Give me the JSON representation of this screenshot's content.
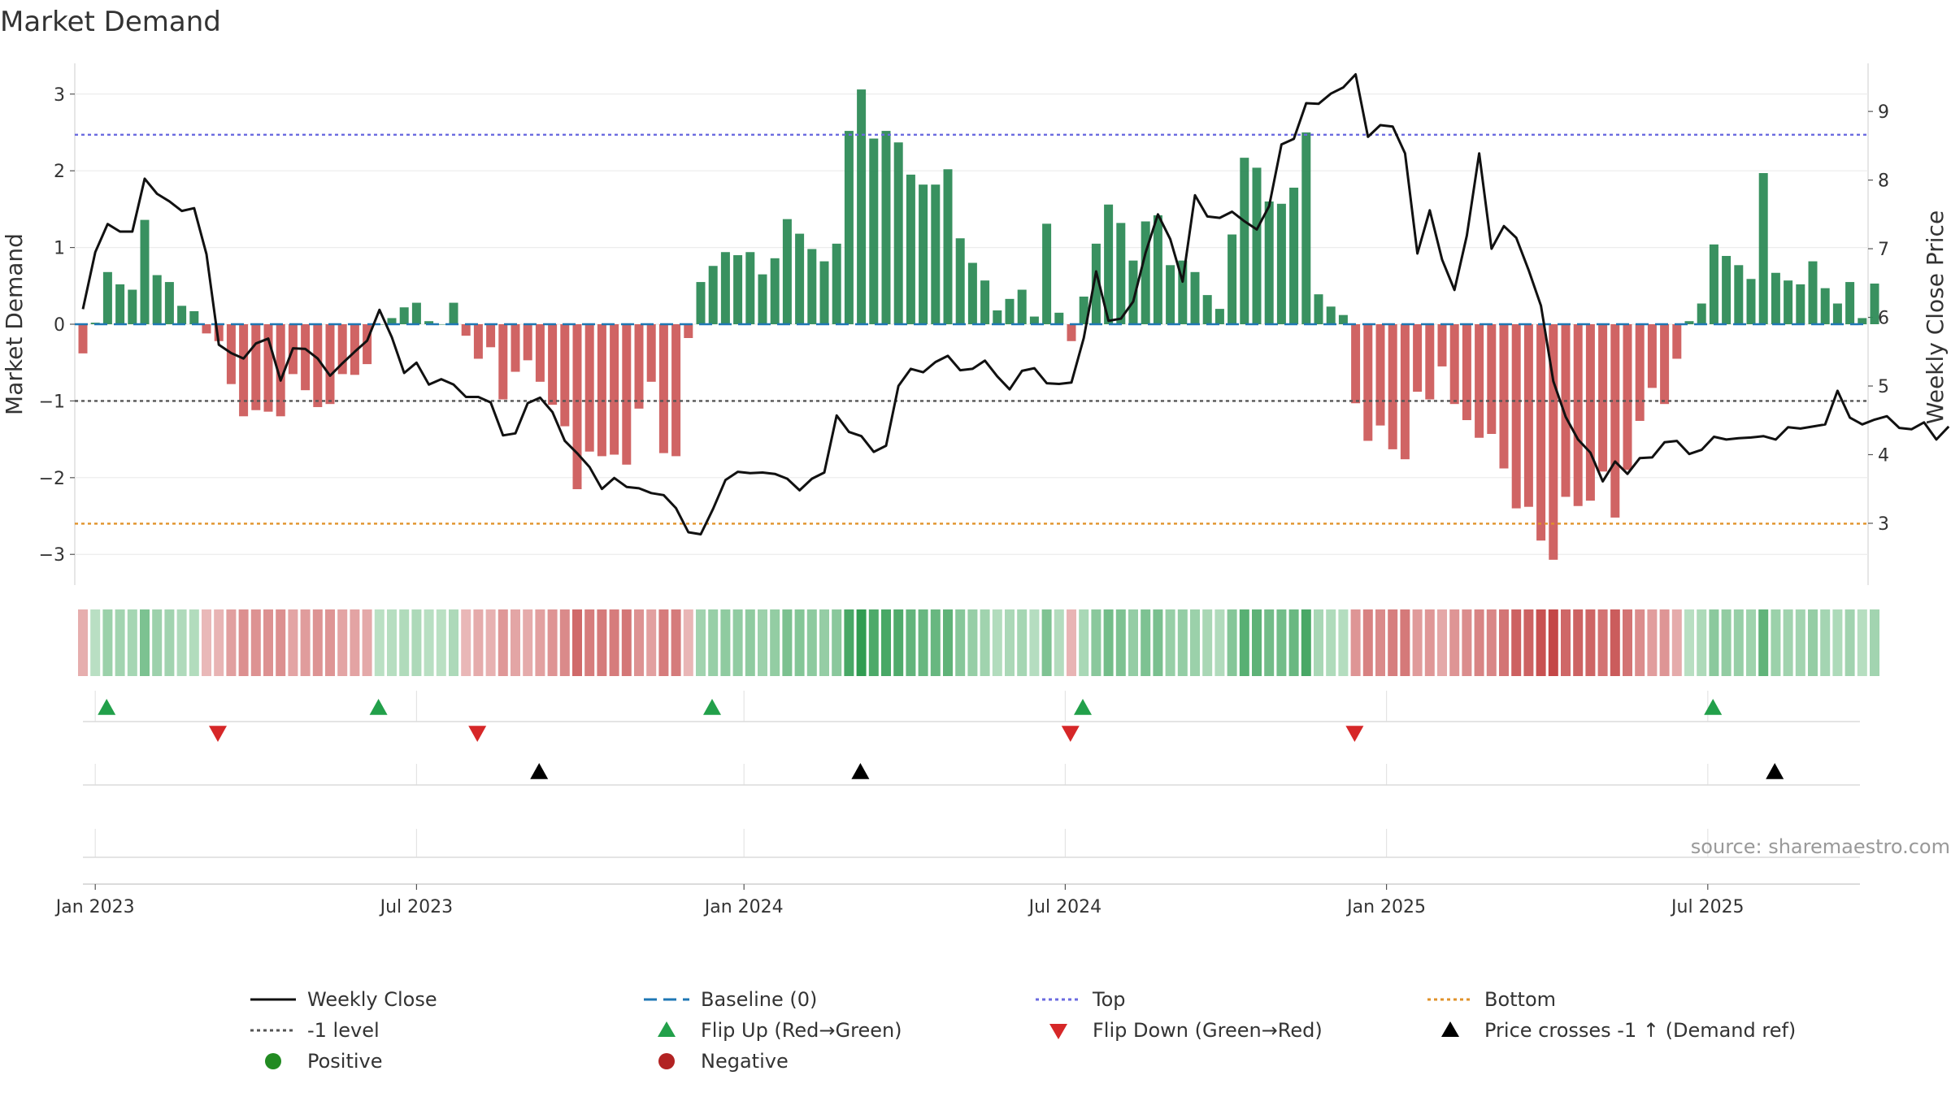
{
  "chart_data": {
    "type": "bar",
    "title": "Market Demand",
    "ylabel": "Market Demand",
    "y2label": "Weekly Close Price",
    "ylim": [
      -3.4,
      3.4
    ],
    "y2lim": [
      2.1,
      9.7
    ],
    "yticks": [
      -3,
      -2,
      -1,
      0,
      1,
      2,
      3
    ],
    "y2ticks": [
      3,
      4,
      5,
      6,
      7,
      8,
      9
    ],
    "x_tick_labels": [
      "Jan 2023",
      "Jul 2023",
      "Jan 2024",
      "Jul 2024",
      "Jan 2025",
      "Jul 2025"
    ],
    "x_tick_index": [
      1,
      27,
      53.5,
      79.5,
      105.5,
      131.5
    ],
    "reference_lines": {
      "top": 2.47,
      "minus_one": -1.0,
      "bottom": -2.6,
      "baseline": 0
    },
    "series": [
      {
        "name": "Market Demand",
        "values": [
          -0.38,
          0.02,
          0.68,
          0.52,
          0.45,
          1.36,
          0.64,
          0.55,
          0.24,
          0.17,
          -0.12,
          -0.22,
          -0.78,
          -1.2,
          -1.12,
          -1.14,
          -1.2,
          -0.65,
          -0.86,
          -1.08,
          -1.04,
          -0.65,
          -0.66,
          -0.52,
          0.0,
          0.08,
          0.22,
          0.28,
          0.04,
          0.0,
          0.28,
          -0.15,
          -0.45,
          -0.3,
          -0.98,
          -0.62,
          -0.47,
          -0.75,
          -1.05,
          -1.33,
          -2.15,
          -1.66,
          -1.72,
          -1.7,
          -1.83,
          -1.1,
          -0.75,
          -1.68,
          -1.72,
          -0.18,
          0.55,
          0.76,
          0.94,
          0.9,
          0.94,
          0.65,
          0.86,
          1.37,
          1.18,
          0.98,
          0.82,
          1.05,
          2.52,
          3.06,
          2.42,
          2.52,
          2.37,
          1.95,
          1.82,
          1.82,
          2.02,
          1.12,
          0.8,
          0.57,
          0.18,
          0.33,
          0.45,
          0.1,
          1.31,
          0.15,
          -0.22,
          0.36,
          1.05,
          1.56,
          1.32,
          0.83,
          1.34,
          1.42,
          0.77,
          0.83,
          0.68,
          0.38,
          0.2,
          1.17,
          2.17,
          2.04,
          1.6,
          1.57,
          1.78,
          2.5,
          0.39,
          0.23,
          0.12,
          -1.03,
          -1.52,
          -1.32,
          -1.63,
          -1.76,
          -0.88,
          -0.98,
          -0.55,
          -1.04,
          -1.25,
          -1.48,
          -1.43,
          -1.88,
          -2.4,
          -2.38,
          -2.82,
          -3.07,
          -2.25,
          -2.37,
          -2.3,
          -1.92,
          -2.52,
          -1.9,
          -1.26,
          -0.83,
          -1.04,
          -0.45,
          0.04,
          0.27,
          1.04,
          0.89,
          0.77,
          0.59,
          1.97,
          0.67,
          0.57,
          0.52,
          0.82,
          0.47,
          0.27,
          0.55,
          0.08,
          0.53
        ]
      },
      {
        "name": "Weekly Close",
        "values": [
          6.12,
          6.95,
          7.36,
          7.25,
          7.25,
          8.02,
          7.8,
          7.69,
          7.55,
          7.59,
          6.92,
          5.6,
          5.48,
          5.4,
          5.62,
          5.69,
          5.08,
          5.55,
          5.54,
          5.4,
          5.15,
          5.33,
          5.5,
          5.66,
          6.11,
          5.71,
          5.19,
          5.34,
          5.02,
          5.1,
          5.02,
          4.84,
          4.84,
          4.76,
          4.28,
          4.31,
          4.75,
          4.83,
          4.62,
          4.2,
          4.02,
          3.82,
          3.5,
          3.66,
          3.53,
          3.51,
          3.44,
          3.41,
          3.22,
          2.87,
          2.84,
          3.21,
          3.63,
          3.75,
          3.73,
          3.74,
          3.72,
          3.65,
          3.48,
          3.65,
          3.74,
          4.57,
          4.33,
          4.27,
          4.04,
          4.13,
          5.0,
          5.25,
          5.2,
          5.35,
          5.44,
          5.23,
          5.25,
          5.37,
          5.14,
          4.95,
          5.22,
          5.26,
          5.04,
          5.03,
          5.05,
          5.7,
          6.67,
          5.95,
          5.98,
          6.23,
          6.94,
          7.5,
          7.14,
          6.52,
          7.78,
          7.47,
          7.45,
          7.54,
          7.4,
          7.28,
          7.62,
          8.52,
          8.6,
          9.12,
          9.11,
          9.26,
          9.35,
          9.54,
          8.63,
          8.8,
          8.78,
          8.39,
          6.93,
          7.56,
          6.84,
          6.4,
          7.19,
          8.39,
          7.0,
          7.33,
          7.16,
          6.69,
          6.17,
          5.07,
          4.55,
          4.22,
          4.03,
          3.61,
          3.9,
          3.72,
          3.95,
          3.96,
          4.18,
          4.2,
          4.01,
          4.07,
          4.26,
          4.22,
          4.24,
          4.25,
          4.27,
          4.22,
          4.4,
          4.38,
          4.41,
          4.44,
          4.93,
          4.54,
          4.44,
          4.51,
          4.56,
          4.39,
          4.37,
          4.47,
          4.22,
          4.41
        ]
      }
    ],
    "signals": {
      "flip_up_index": [
        1,
        23,
        50,
        80,
        131
      ],
      "flip_down_index": [
        10,
        31,
        79,
        102
      ],
      "price_cross_index": [
        36,
        62,
        136
      ]
    },
    "legend_position": "bottom",
    "source_text": "source: sharemaestro.com"
  },
  "legend": {
    "items": [
      {
        "label": "Weekly Close",
        "symbol": "line-solid"
      },
      {
        "label": "Baseline (0)",
        "symbol": "line-dashed"
      },
      {
        "label": "Top",
        "symbol": "line-dotted-blue"
      },
      {
        "label": "Bottom",
        "symbol": "line-dotted-orange"
      },
      {
        "label": "-1 level",
        "symbol": "line-dotted-gray"
      },
      {
        "label": "Flip Up (Red→Green)",
        "symbol": "triangle-up-green"
      },
      {
        "label": "Flip Down (Green→Red)",
        "symbol": "triangle-down-red"
      },
      {
        "label": "Price crosses -1 ↑ (Demand ref)",
        "symbol": "triangle-up-black"
      },
      {
        "label": "Positive",
        "symbol": "circle-green"
      },
      {
        "label": "Negative",
        "symbol": "circle-red"
      }
    ]
  },
  "colors": {
    "positive": "#2e8b57",
    "negative": "#cd5c5c",
    "price": "#111111",
    "top": "#6b6be0",
    "bottom": "#e0922a",
    "minus_one": "#555555",
    "baseline": "#1f77b4",
    "flip_up": "#22a04a",
    "flip_down": "#d62728",
    "cross": "#000000"
  }
}
